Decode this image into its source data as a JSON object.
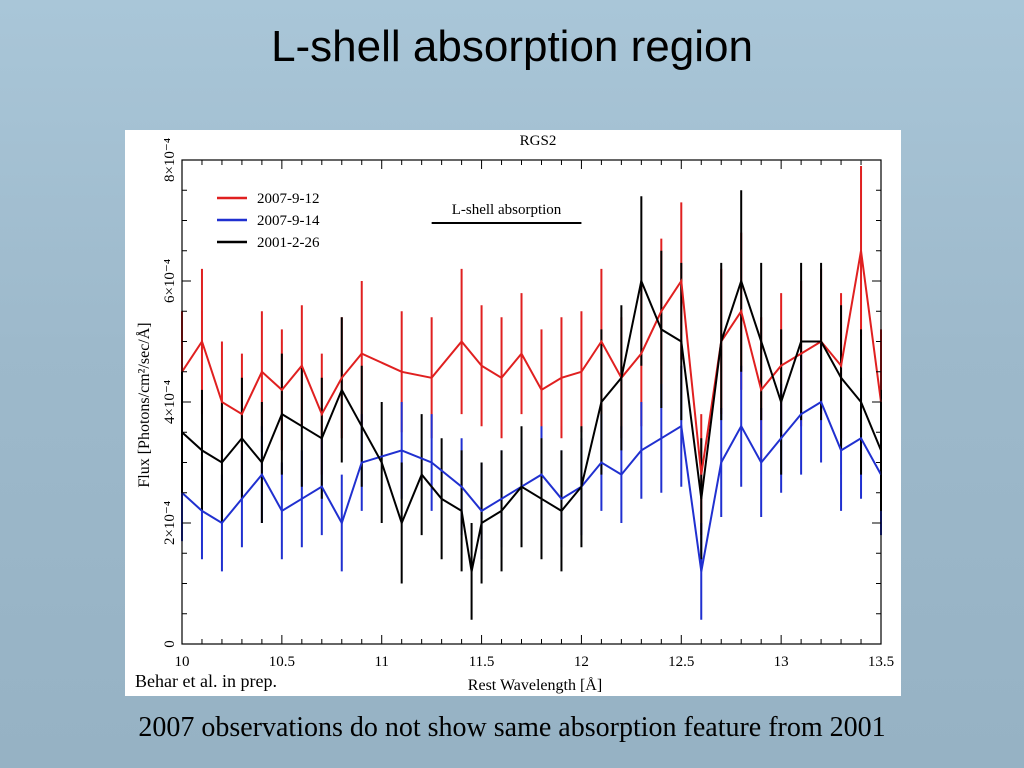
{
  "slide": {
    "title": "L-shell absorption region",
    "caption": "2007 observations do not show same absorption feature from 2001",
    "credit": "Behar et al. in prep."
  },
  "chart_data": {
    "type": "line",
    "title": "RGS2",
    "xlabel": "Rest Wavelength [Å]",
    "ylabel": "Flux [Photons/cm²/sec/Å]",
    "xlim": [
      10,
      13.5
    ],
    "ylim": [
      0,
      0.0008
    ],
    "x_ticks": [
      "10",
      "10.5",
      "11",
      "11.5",
      "12",
      "12.5",
      "13",
      "13.5"
    ],
    "y_ticks": [
      "0",
      "2×10⁻⁴",
      "4×10⁻⁴",
      "6×10⁻⁴",
      "8×10⁻⁴"
    ],
    "annotation": "L-shell absorption",
    "annotation_range": [
      11.25,
      12.0
    ],
    "legend_position": "top-left",
    "series": [
      {
        "name": "2007-9-12",
        "color": "#e02020",
        "x": [
          10.0,
          10.1,
          10.2,
          10.3,
          10.4,
          10.5,
          10.6,
          10.7,
          10.8,
          10.9,
          11.1,
          11.25,
          11.4,
          11.5,
          11.6,
          11.7,
          11.8,
          11.9,
          12.0,
          12.1,
          12.2,
          12.3,
          12.4,
          12.5,
          12.6,
          12.7,
          12.8,
          12.9,
          13.0,
          13.1,
          13.2,
          13.3,
          13.4,
          13.5
        ],
        "y": [
          0.00045,
          0.0005,
          0.0004,
          0.00038,
          0.00045,
          0.00042,
          0.00046,
          0.00038,
          0.00044,
          0.00048,
          0.00045,
          0.00044,
          0.0005,
          0.00046,
          0.00044,
          0.00048,
          0.00042,
          0.00044,
          0.00045,
          0.0005,
          0.00044,
          0.00048,
          0.00055,
          0.0006,
          0.00028,
          0.0005,
          0.00055,
          0.00042,
          0.00046,
          0.00048,
          0.0005,
          0.00046,
          0.00065,
          0.0004
        ],
        "err": [
          0.0001,
          0.00012,
          0.0001,
          0.0001,
          0.0001,
          0.0001,
          0.0001,
          0.0001,
          0.0001,
          0.00012,
          0.0001,
          0.0001,
          0.00012,
          0.0001,
          0.0001,
          0.0001,
          0.0001,
          0.0001,
          0.0001,
          0.00012,
          0.0001,
          0.00012,
          0.00012,
          0.00013,
          0.0001,
          0.00012,
          0.00013,
          0.00012,
          0.00012,
          0.00012,
          0.00012,
          0.00012,
          0.00014,
          0.00012
        ]
      },
      {
        "name": "2007-9-14",
        "color": "#2030d0",
        "x": [
          10.0,
          10.1,
          10.2,
          10.3,
          10.4,
          10.5,
          10.6,
          10.7,
          10.8,
          10.9,
          11.1,
          11.25,
          11.4,
          11.5,
          11.6,
          11.7,
          11.8,
          11.9,
          12.0,
          12.1,
          12.2,
          12.3,
          12.4,
          12.5,
          12.6,
          12.7,
          12.8,
          12.9,
          13.0,
          13.1,
          13.2,
          13.3,
          13.4,
          13.5
        ],
        "y": [
          0.00025,
          0.00022,
          0.0002,
          0.00024,
          0.00028,
          0.00022,
          0.00024,
          0.00026,
          0.0002,
          0.0003,
          0.00032,
          0.0003,
          0.00026,
          0.00022,
          0.00024,
          0.00026,
          0.00028,
          0.00024,
          0.00026,
          0.0003,
          0.00028,
          0.00032,
          0.00034,
          0.00036,
          0.00012,
          0.0003,
          0.00036,
          0.0003,
          0.00034,
          0.00038,
          0.0004,
          0.00032,
          0.00034,
          0.00028
        ],
        "err": [
          8e-05,
          8e-05,
          8e-05,
          8e-05,
          8e-05,
          8e-05,
          8e-05,
          8e-05,
          8e-05,
          8e-05,
          8e-05,
          8e-05,
          8e-05,
          8e-05,
          8e-05,
          8e-05,
          8e-05,
          8e-05,
          8e-05,
          8e-05,
          8e-05,
          8e-05,
          9e-05,
          0.0001,
          8e-05,
          9e-05,
          0.0001,
          9e-05,
          9e-05,
          0.0001,
          0.0001,
          0.0001,
          0.0001,
          0.0001
        ]
      },
      {
        "name": "2001-2-26",
        "color": "#000000",
        "x": [
          10.0,
          10.1,
          10.2,
          10.3,
          10.4,
          10.5,
          10.6,
          10.7,
          10.8,
          10.9,
          11.0,
          11.1,
          11.2,
          11.3,
          11.4,
          11.45,
          11.5,
          11.6,
          11.7,
          11.8,
          11.9,
          12.0,
          12.1,
          12.2,
          12.3,
          12.4,
          12.5,
          12.6,
          12.7,
          12.8,
          12.9,
          13.0,
          13.1,
          13.2,
          13.3,
          13.4,
          13.5
        ],
        "y": [
          0.00035,
          0.00032,
          0.0003,
          0.00034,
          0.0003,
          0.00038,
          0.00036,
          0.00034,
          0.00042,
          0.00036,
          0.0003,
          0.0002,
          0.00028,
          0.00024,
          0.00022,
          0.00012,
          0.0002,
          0.00022,
          0.00026,
          0.00024,
          0.00022,
          0.00026,
          0.0004,
          0.00044,
          0.0006,
          0.00052,
          0.0005,
          0.00024,
          0.0005,
          0.0006,
          0.0005,
          0.0004,
          0.0005,
          0.0005,
          0.00044,
          0.0004,
          0.00032
        ],
        "err": [
          0.0001,
          0.0001,
          0.0001,
          0.0001,
          0.0001,
          0.0001,
          0.0001,
          0.0001,
          0.00012,
          0.0001,
          0.0001,
          0.0001,
          0.0001,
          0.0001,
          0.0001,
          8e-05,
          0.0001,
          0.0001,
          0.0001,
          0.0001,
          0.0001,
          0.0001,
          0.00012,
          0.00012,
          0.00014,
          0.00013,
          0.00013,
          0.0001,
          0.00013,
          0.00015,
          0.00013,
          0.00012,
          0.00013,
          0.00013,
          0.00012,
          0.00012,
          0.0001
        ]
      }
    ]
  }
}
